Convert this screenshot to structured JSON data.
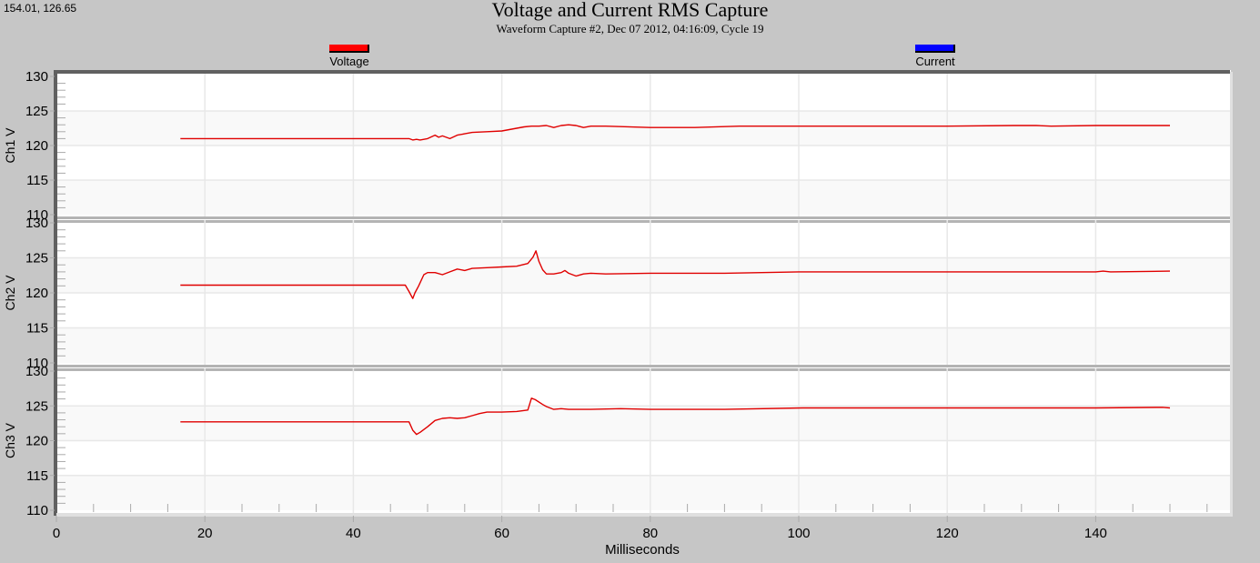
{
  "cursor_readout": "154.01, 126.65",
  "header": {
    "title": "Voltage and Current RMS Capture",
    "subtitle": "Waveform Capture #2, Dec 07 2012, 04:16:09,  Cycle 19"
  },
  "legend": [
    {
      "label": "Voltage",
      "color": "#ff0000"
    },
    {
      "label": "Current",
      "color": "#0000ff"
    }
  ],
  "colors": {
    "background": "#c6c6c6",
    "plot_bg_white": "#ffffff",
    "plot_bg_band": "#f9f9f9",
    "grid": "#e8e8e8",
    "axis": "#606060",
    "separator": "#b4b4b4",
    "trace": "#e00000"
  },
  "chart_data": {
    "type": "line",
    "title": "Voltage and Current RMS Capture",
    "subtitle": "Waveform Capture #2, Dec 07 2012, 04:16:09,  Cycle 19",
    "xlabel": "Milliseconds",
    "xlim": [
      0,
      158
    ],
    "x_ticks": [
      0,
      20,
      40,
      60,
      80,
      100,
      120,
      140
    ],
    "x_tick_labels": [
      "0",
      "20",
      "40",
      "60",
      "80",
      "100",
      "120",
      "140"
    ],
    "grid": true,
    "legend_position": "top",
    "legend": [
      "Voltage",
      "Current"
    ],
    "panels": [
      {
        "ylabel": "Ch1 V",
        "ylim": [
          110,
          130
        ],
        "y_ticks": [
          110,
          115,
          120,
          125,
          130
        ],
        "series": [
          {
            "name": "Voltage",
            "color": "#ff0000",
            "x": [
              16.7,
              40,
              47.5,
              48,
              48.5,
              49,
              50,
              51,
              51.5,
              52,
              53,
              54,
              55,
              56,
              58,
              60,
              62,
              63,
              64,
              65,
              66,
              67,
              68,
              69,
              70,
              71,
              72,
              74,
              80,
              86,
              92,
              100,
              110,
              120,
              129,
              130,
              132,
              134,
              140,
              150
            ],
            "values": [
              121.0,
              121.0,
              121.0,
              120.8,
              120.9,
              120.8,
              121.0,
              121.5,
              121.2,
              121.4,
              121.0,
              121.5,
              121.7,
              121.9,
              122.0,
              122.1,
              122.5,
              122.7,
              122.8,
              122.8,
              122.9,
              122.6,
              122.9,
              123.0,
              122.9,
              122.6,
              122.8,
              122.8,
              122.6,
              122.6,
              122.8,
              122.8,
              122.8,
              122.8,
              122.9,
              122.9,
              122.9,
              122.8,
              122.9,
              122.9
            ]
          },
          {
            "name": "Current",
            "color": "#0000ff",
            "x": [],
            "values": []
          }
        ]
      },
      {
        "ylabel": "Ch2 V",
        "ylim": [
          110,
          130
        ],
        "y_ticks": [
          110,
          115,
          120,
          125,
          130
        ],
        "series": [
          {
            "name": "Voltage",
            "color": "#ff0000",
            "x": [
              16.7,
              47.0,
              47.5,
              48.0,
              48.3,
              48.8,
              49.5,
              50.0,
              51.0,
              52.0,
              53.0,
              54.0,
              55.0,
              56.0,
              58.0,
              60.0,
              62.0,
              63.5,
              64.2,
              64.6,
              65.0,
              65.5,
              66.0,
              67.0,
              68.0,
              68.5,
              69.0,
              70.0,
              71.0,
              72.0,
              74.0,
              80.0,
              90.0,
              100.0,
              110.0,
              120.0,
              130.0,
              140.0,
              141.0,
              142.0,
              150.0
            ],
            "values": [
              121.1,
              121.1,
              120.2,
              119.2,
              120.0,
              121.0,
              122.6,
              122.9,
              122.9,
              122.6,
              123.0,
              123.4,
              123.2,
              123.5,
              123.6,
              123.7,
              123.8,
              124.2,
              125.1,
              126.0,
              124.5,
              123.3,
              122.7,
              122.7,
              122.9,
              123.2,
              122.8,
              122.4,
              122.7,
              122.8,
              122.7,
              122.8,
              122.8,
              123.0,
              123.0,
              123.0,
              123.0,
              123.0,
              123.1,
              123.0,
              123.1
            ]
          },
          {
            "name": "Current",
            "color": "#0000ff",
            "x": [],
            "values": []
          }
        ]
      },
      {
        "ylabel": "Ch3 V",
        "ylim": [
          110,
          130
        ],
        "y_ticks": [
          110,
          115,
          120,
          125,
          130
        ],
        "series": [
          {
            "name": "Voltage",
            "color": "#ff0000",
            "x": [
              16.7,
              47.5,
              48.0,
              48.5,
              49.0,
              50.0,
              51.0,
              52.0,
              53.0,
              54.0,
              55.0,
              56.0,
              57.0,
              58.0,
              60.0,
              62.0,
              63.5,
              64.0,
              64.5,
              65.5,
              66.0,
              67.0,
              68.0,
              69.0,
              72.0,
              76.0,
              80.0,
              90.0,
              100.5,
              110.0,
              120.0,
              130.0,
              140.0,
              149.0,
              150.0
            ],
            "values": [
              122.7,
              122.7,
              121.5,
              120.9,
              121.2,
              122.0,
              122.9,
              123.2,
              123.3,
              123.2,
              123.3,
              123.6,
              123.9,
              124.1,
              124.1,
              124.2,
              124.4,
              126.1,
              125.9,
              125.2,
              124.9,
              124.5,
              124.6,
              124.5,
              124.5,
              124.6,
              124.5,
              124.5,
              124.7,
              124.7,
              124.7,
              124.7,
              124.7,
              124.8,
              124.7
            ]
          },
          {
            "name": "Current",
            "color": "#0000ff",
            "x": [],
            "values": []
          }
        ]
      }
    ]
  }
}
